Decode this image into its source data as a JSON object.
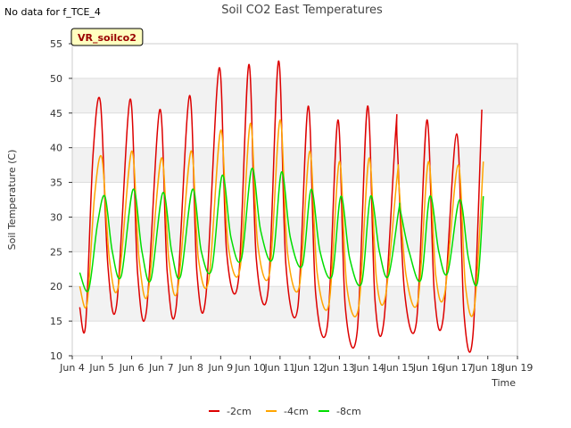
{
  "note": "No data for f_TCE_4",
  "chart_data": {
    "type": "line",
    "title": "Soil CO2 East Temperatures",
    "xlabel": "Time",
    "ylabel": "Soil Temperature (C)",
    "site_label": "VR_soilco2",
    "ylim": [
      10,
      55
    ],
    "y_ticks": [
      10,
      15,
      20,
      25,
      30,
      35,
      40,
      45,
      50,
      55
    ],
    "xlim": [
      4,
      19
    ],
    "x_ticks": [
      4,
      5,
      6,
      7,
      8,
      9,
      10,
      11,
      12,
      13,
      14,
      15,
      16,
      17,
      18,
      19
    ],
    "x_tick_labels": [
      "Jun 4",
      "Jun 5",
      "Jun 6",
      "Jun 7",
      "Jun 8",
      "Jun 9",
      "Jun 10",
      "Jun 11",
      "Jun 12",
      "Jun 13",
      "Jun 14",
      "Jun 15",
      "Jun 16",
      "Jun 17",
      "Jun 18",
      "Jun 19"
    ],
    "grid": "horizontal bands",
    "legend_position": "bottom",
    "series": [
      {
        "name": "-2cm",
        "color": "#dd0000",
        "x": [
          4.25,
          4.45,
          4.7,
          4.95,
          5.2,
          5.5,
          5.95,
          6.2,
          6.5,
          6.95,
          7.2,
          7.5,
          7.95,
          8.2,
          8.5,
          8.95,
          9.2,
          9.6,
          9.95,
          10.2,
          10.6,
          10.95,
          11.2,
          11.6,
          11.95,
          12.2,
          12.6,
          12.95,
          13.2,
          13.6,
          13.95,
          14.2,
          14.5,
          14.9,
          14.95,
          15.2,
          15.6,
          15.95,
          16.2,
          16.5,
          16.95,
          17.2,
          17.5,
          17.8
        ],
        "y": [
          17,
          14.5,
          39,
          46.5,
          23,
          17.5,
          47,
          22,
          16.5,
          45.5,
          22,
          17,
          47.5,
          22,
          18.5,
          51.5,
          25,
          21,
          52,
          24,
          19.5,
          52.5,
          23,
          17,
          46,
          19,
          14.5,
          44,
          17,
          13.5,
          46,
          18,
          15,
          42.5,
          40.5,
          19,
          15,
          44,
          19,
          15.5,
          42,
          16,
          13,
          45.5
        ]
      },
      {
        "name": "-4cm",
        "color": "#ffa500",
        "x": [
          4.25,
          4.5,
          4.75,
          5.0,
          5.25,
          5.55,
          6.0,
          6.25,
          6.55,
          7.0,
          7.25,
          7.55,
          8.0,
          8.25,
          8.6,
          9.0,
          9.25,
          9.65,
          10.0,
          10.25,
          10.65,
          11.0,
          11.25,
          11.65,
          12.0,
          12.25,
          12.65,
          13.0,
          13.25,
          13.65,
          14.0,
          14.25,
          14.55,
          14.95,
          15.0,
          15.25,
          15.65,
          16.0,
          16.25,
          16.55,
          17.0,
          17.25,
          17.55,
          17.85
        ],
        "y": [
          20,
          17.5,
          33,
          38.5,
          24,
          20,
          39.5,
          24,
          19,
          38.5,
          24,
          19.5,
          39.5,
          24,
          21,
          42.5,
          26,
          22.5,
          43.5,
          26,
          22,
          44,
          25,
          20,
          39.5,
          22,
          17.5,
          38,
          20,
          17,
          38.5,
          21,
          18.5,
          36,
          35,
          21.5,
          18,
          38,
          21.5,
          19,
          37.5,
          20,
          17,
          38
        ]
      },
      {
        "name": "-8cm",
        "color": "#00dd00",
        "x": [
          4.25,
          4.55,
          4.85,
          5.1,
          5.35,
          5.65,
          6.05,
          6.35,
          6.65,
          7.05,
          7.35,
          7.65,
          8.05,
          8.35,
          8.7,
          9.05,
          9.35,
          9.7,
          10.05,
          10.35,
          10.75,
          11.05,
          11.35,
          11.75,
          12.05,
          12.35,
          12.75,
          13.05,
          13.35,
          13.75,
          14.05,
          14.35,
          14.65,
          15.0,
          15.05,
          15.35,
          15.75,
          16.05,
          16.35,
          16.65,
          17.05,
          17.35,
          17.65,
          17.85
        ],
        "y": [
          22,
          19.5,
          29,
          33,
          25,
          21.5,
          34,
          25,
          21,
          33.5,
          25,
          21.5,
          34,
          25,
          22.5,
          36,
          27,
          24,
          37,
          28,
          24,
          36.5,
          27,
          23,
          34,
          25,
          21.5,
          33,
          24,
          20.5,
          33,
          25,
          21.5,
          31,
          31,
          25,
          21,
          33,
          25,
          22,
          32.5,
          24,
          20.5,
          33
        ]
      }
    ]
  }
}
